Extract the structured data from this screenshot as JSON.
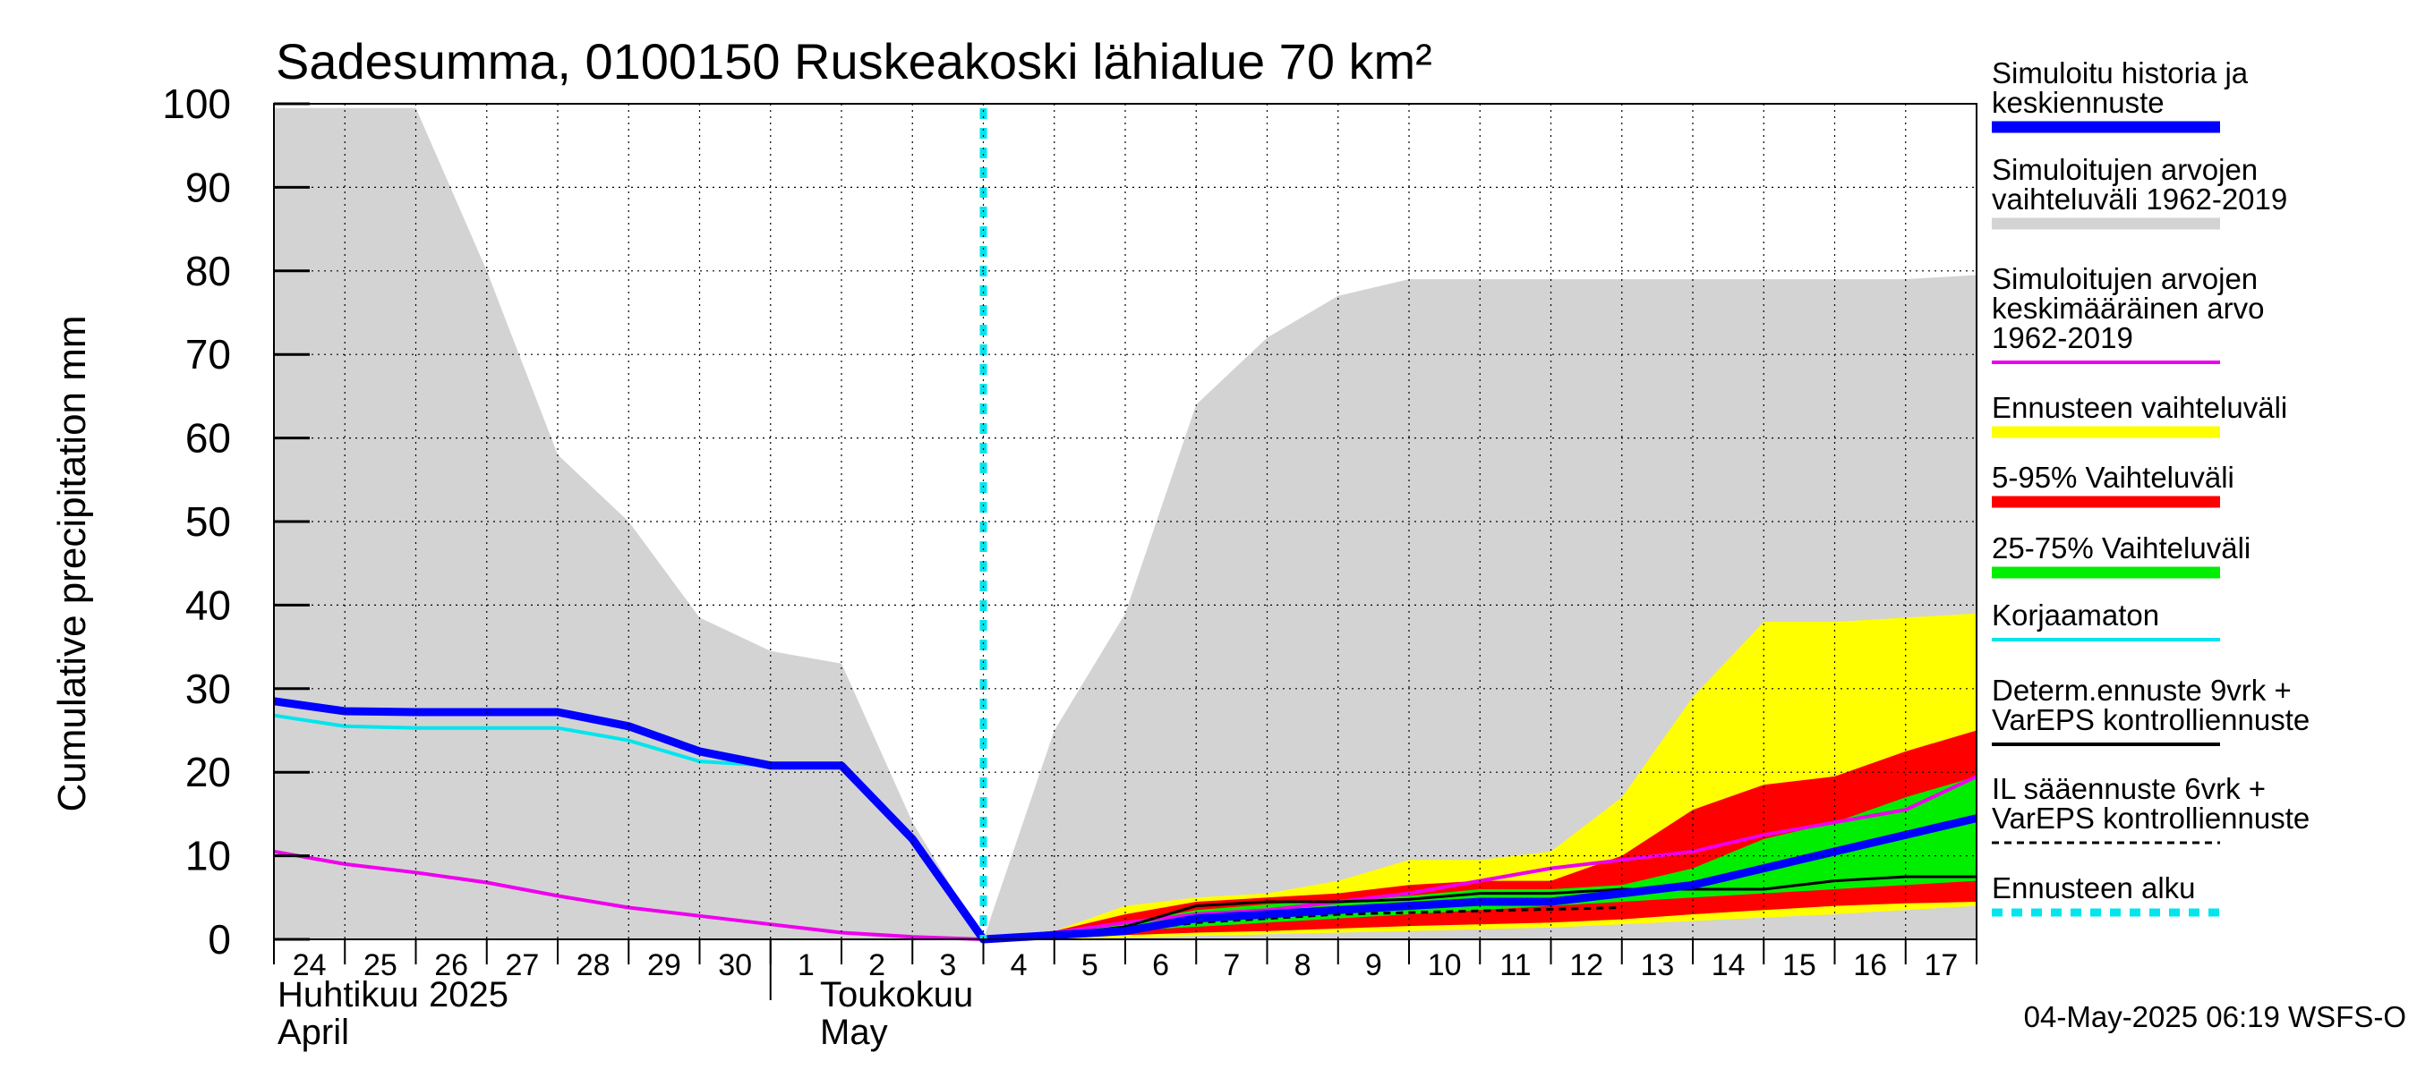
{
  "chart_data": {
    "type": "area",
    "title": "Sadesumma, 0100150 Ruskeakoski lähialue 70 km²",
    "ylabel": "Cumulative precipitation   mm",
    "ylim": [
      0,
      100
    ],
    "yticks": [
      "0",
      "10",
      "20",
      "30",
      "40",
      "50",
      "60",
      "70",
      "80",
      "90",
      "100"
    ],
    "grid": true,
    "x_day_labels": [
      "24",
      "25",
      "26",
      "27",
      "28",
      "29",
      "30",
      "1",
      "2",
      "3",
      "4",
      "5",
      "6",
      "7",
      "8",
      "9",
      "10",
      "11",
      "12",
      "13",
      "14",
      "15",
      "16",
      "17"
    ],
    "months": [
      {
        "line1": "Huhtikuu  2025",
        "line2": "April"
      },
      {
        "line1": "Toukokuu",
        "line2": "May"
      }
    ],
    "forecast_start_day_index": 10,
    "colors": {
      "history_band": "#d3d3d3",
      "yellow": "#ffff00",
      "red": "#ff0000",
      "green": "#00ee00",
      "blue": "#0000ff",
      "cyan": "#00e5ee",
      "magenta": "#ee00ee",
      "black": "#000000"
    },
    "series": {
      "hist_upper": [
        99.5,
        99.5,
        99.5,
        80,
        58,
        50,
        38.5,
        34.5,
        33,
        14,
        0,
        25,
        39,
        64,
        72,
        77,
        79,
        79,
        79,
        79,
        79,
        79,
        79,
        79,
        79.5
      ],
      "yellow_upper": [
        null,
        null,
        null,
        null,
        null,
        null,
        null,
        null,
        null,
        null,
        0,
        1,
        4,
        5,
        5.5,
        7,
        9.5,
        9.5,
        10.5,
        17,
        29,
        38,
        38,
        38.5,
        39
      ],
      "yellow_lower": [
        null,
        null,
        null,
        null,
        null,
        null,
        null,
        null,
        null,
        null,
        0,
        0,
        0.2,
        0.4,
        0.6,
        0.8,
        1,
        1.2,
        1.4,
        1.8,
        2.2,
        2.6,
        3,
        3.5,
        4
      ],
      "red_upper": [
        null,
        null,
        null,
        null,
        null,
        null,
        null,
        null,
        null,
        null,
        0,
        1,
        3,
        4.5,
        5,
        5.5,
        6.5,
        7,
        7,
        10,
        15.5,
        18.5,
        19.5,
        22.5,
        25
      ],
      "red_lower": [
        null,
        null,
        null,
        null,
        null,
        null,
        null,
        null,
        null,
        null,
        0,
        0.3,
        0.5,
        0.8,
        1,
        1.3,
        1.6,
        1.8,
        2,
        2.4,
        3,
        3.5,
        4,
        4.3,
        4.5
      ],
      "green_upper": [
        null,
        null,
        null,
        null,
        null,
        null,
        null,
        null,
        null,
        null,
        0,
        0.8,
        2,
        3.5,
        4.2,
        4.7,
        5.2,
        6,
        6,
        6.5,
        8.5,
        12,
        14,
        17,
        19.5
      ],
      "green_lower": [
        null,
        null,
        null,
        null,
        null,
        null,
        null,
        null,
        null,
        null,
        0,
        0.5,
        1,
        1.5,
        2,
        2.5,
        3,
        3.5,
        4,
        4.5,
        5,
        5.5,
        6,
        6.5,
        7
      ],
      "hist_mean_magenta": [
        10.5,
        9,
        8,
        6.8,
        5.2,
        3.8,
        2.8,
        1.8,
        0.8,
        0.3,
        0,
        0.8,
        2,
        3,
        3.5,
        4.5,
        5.5,
        7,
        8.5,
        9.5,
        10.5,
        12.5,
        14,
        15.5,
        19.5
      ],
      "sim_history_blue": [
        28.5,
        27.3,
        27.2,
        27.2,
        27.2,
        25.5,
        22.5,
        20.8,
        20.8,
        12,
        0,
        0.5,
        1,
        2.5,
        3,
        3.5,
        4,
        4.5,
        4.5,
        5.5,
        6.5,
        8.5,
        10.5,
        12.5,
        14.5
      ],
      "uncorrected_cyan": [
        26.8,
        25.5,
        25.3,
        25.3,
        25.3,
        23.8,
        21.3,
        20.8,
        20.8,
        12,
        0
      ],
      "determ_black": [
        null,
        null,
        null,
        null,
        null,
        null,
        null,
        null,
        null,
        null,
        0,
        0.5,
        1.5,
        4,
        4.5,
        4.5,
        4.8,
        5.5,
        5.5,
        6,
        6,
        6,
        7,
        7.5,
        7.5
      ],
      "il_dashed": [
        null,
        null,
        null,
        null,
        null,
        null,
        null,
        null,
        null,
        null,
        0,
        0.3,
        1,
        2,
        2.5,
        3,
        3.2,
        3.4,
        3.6,
        3.8,
        null,
        null,
        null,
        null,
        null
      ]
    }
  },
  "legend": [
    {
      "lines": [
        "Simuloitu historia ja",
        "keskiennuste"
      ],
      "color": "#0000ff",
      "style": "thick"
    },
    {
      "lines": [
        "Simuloitujen arvojen",
        "vaihteluväli 1962-2019"
      ],
      "color": "#d3d3d3",
      "style": "thick"
    },
    {
      "lines": [
        "Simuloitujen arvojen",
        "keskimääräinen arvo",
        "   1962-2019"
      ],
      "color": "#ee00ee",
      "style": "thin"
    },
    {
      "lines": [
        "Ennusteen vaihteluväli"
      ],
      "color": "#ffff00",
      "style": "thick"
    },
    {
      "lines": [
        "5-95% Vaihteluväli"
      ],
      "color": "#ff0000",
      "style": "thick"
    },
    {
      "lines": [
        "25-75% Vaihteluväli"
      ],
      "color": "#00ee00",
      "style": "thick"
    },
    {
      "lines": [
        "Korjaamaton"
      ],
      "color": "#00e5ee",
      "style": "thin"
    },
    {
      "lines": [
        "Determ.ennuste 9vrk +",
        "VarEPS kontrolliennuste"
      ],
      "color": "#000000",
      "style": "thin"
    },
    {
      "lines": [
        "IL sääennuste 6vrk  +",
        "  VarEPS kontrolliennuste"
      ],
      "color": "#000000",
      "style": "dashed"
    },
    {
      "lines": [
        "Ennusteen alku"
      ],
      "color": "#00e5ee",
      "style": "dotted"
    }
  ],
  "timestamp": "04-May-2025 06:19 WSFS-O"
}
